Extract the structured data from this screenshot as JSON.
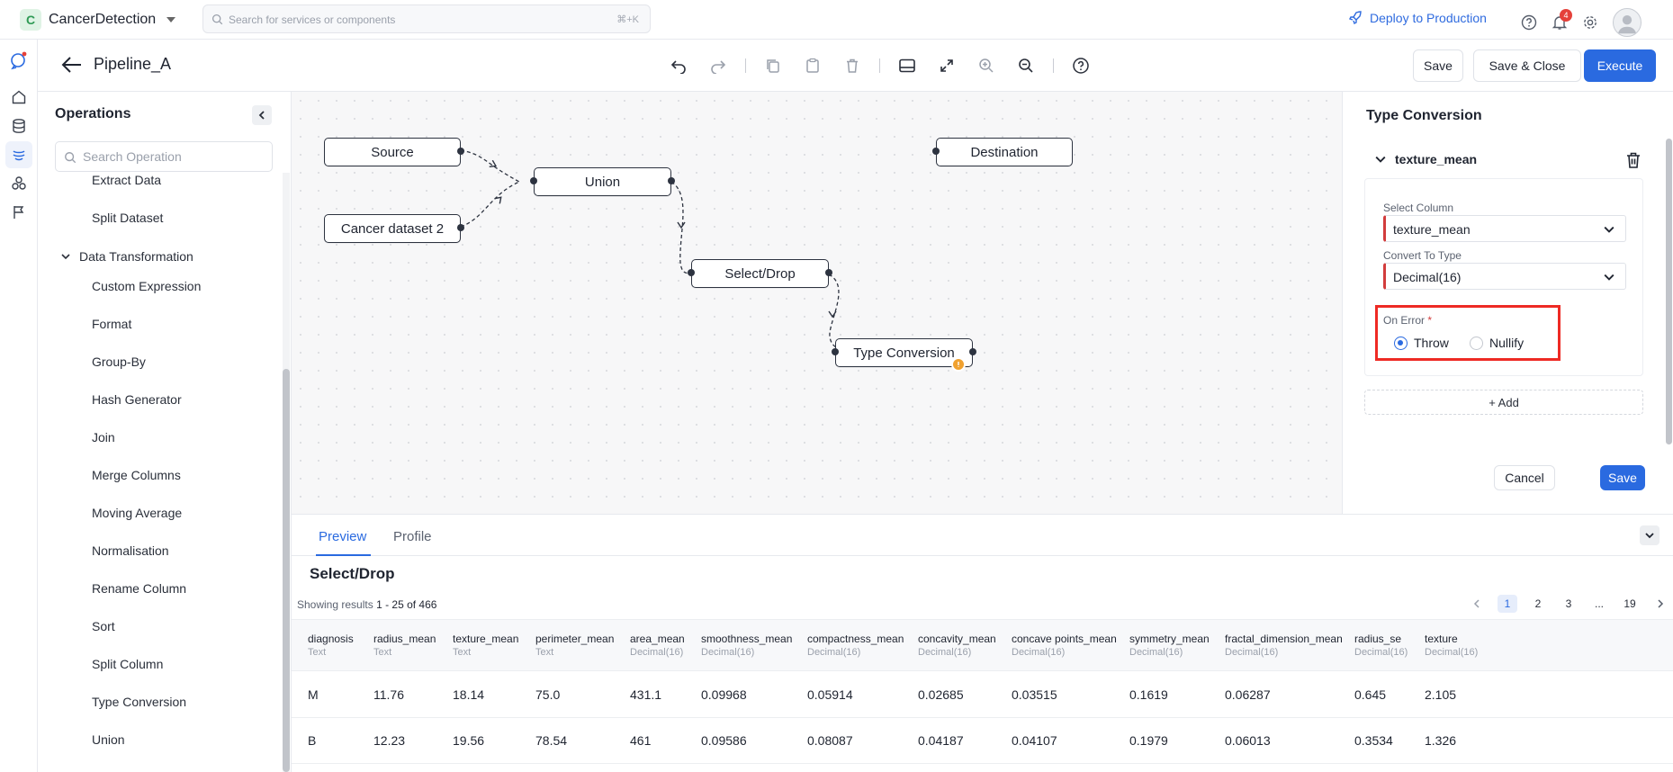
{
  "topbar": {
    "brand_initial": "C",
    "app_name": "CancerDetection",
    "search_placeholder": "Search for services or components",
    "search_shortcut": "⌘+K",
    "deploy_label": "Deploy to Production",
    "notification_count": "4"
  },
  "header": {
    "pipeline_name": "Pipeline_A",
    "save_label": "Save",
    "save_close_label": "Save & Close",
    "execute_label": "Execute"
  },
  "operations": {
    "title": "Operations",
    "search_placeholder": "Search Operation",
    "items_top": [
      "Extract Data",
      "Split Dataset"
    ],
    "group_label": "Data Transformation",
    "group_items": [
      "Custom Expression",
      "Format",
      "Group-By",
      "Hash Generator",
      "Join",
      "Merge Columns",
      "Moving Average",
      "Normalisation",
      "Rename Column",
      "Sort",
      "Split Column",
      "Type Conversion",
      "Union"
    ]
  },
  "canvas": {
    "nodes": {
      "source": "Source",
      "cancer2": "Cancer dataset 2",
      "union": "Union",
      "select_drop": "Select/Drop",
      "type_conversion": "Type Conversion",
      "destination": "Destination"
    }
  },
  "config": {
    "title": "Type Conversion",
    "section_label": "texture_mean",
    "select_column_label": "Select Column",
    "select_column_value": "texture_mean",
    "convert_type_label": "Convert To Type",
    "convert_type_value": "Decimal(16)",
    "on_error_label": "On Error",
    "required_mark": "*",
    "on_error_options": [
      "Throw",
      "Nullify"
    ],
    "on_error_selected": "Throw",
    "add_label": "+ Add",
    "cancel_label": "Cancel",
    "save_label": "Save"
  },
  "preview": {
    "tabs": [
      "Preview",
      "Profile"
    ],
    "title": "Select/Drop",
    "showing_prefix": "Showing results",
    "showing_range": "1 - 25 of 466",
    "pages": [
      "1",
      "2",
      "3",
      "...",
      "19"
    ],
    "current_page": "1",
    "columns": [
      {
        "name": "diagnosis",
        "type": "Text"
      },
      {
        "name": "radius_mean",
        "type": "Text"
      },
      {
        "name": "texture_mean",
        "type": "Text"
      },
      {
        "name": "perimeter_mean",
        "type": "Text"
      },
      {
        "name": "area_mean",
        "type": "Decimal(16)"
      },
      {
        "name": "smoothness_mean",
        "type": "Decimal(16)"
      },
      {
        "name": "compactness_mean",
        "type": "Decimal(16)"
      },
      {
        "name": "concavity_mean",
        "type": "Decimal(16)"
      },
      {
        "name": "concave points_mean",
        "type": "Decimal(16)"
      },
      {
        "name": "symmetry_mean",
        "type": "Decimal(16)"
      },
      {
        "name": "fractal_dimension_mean",
        "type": "Decimal(16)"
      },
      {
        "name": "radius_se",
        "type": "Decimal(16)"
      },
      {
        "name": "texture",
        "type": "Decimal(16)"
      }
    ],
    "rows": [
      [
        "M",
        "11.76",
        "18.14",
        "75.0",
        "431.1",
        "0.09968",
        "0.05914",
        "0.02685",
        "0.03515",
        "0.1619",
        "0.06287",
        "0.645",
        "2.105"
      ],
      [
        "B",
        "12.23",
        "19.56",
        "78.54",
        "461",
        "0.09586",
        "0.08087",
        "0.04187",
        "0.04107",
        "0.1979",
        "0.06013",
        "0.3534",
        "1.326"
      ]
    ]
  },
  "colors": {
    "accent": "#2a6ae0",
    "highlight_box": "#ee2a24",
    "required_border": "#d23c3c",
    "warning": "#f0a130"
  }
}
